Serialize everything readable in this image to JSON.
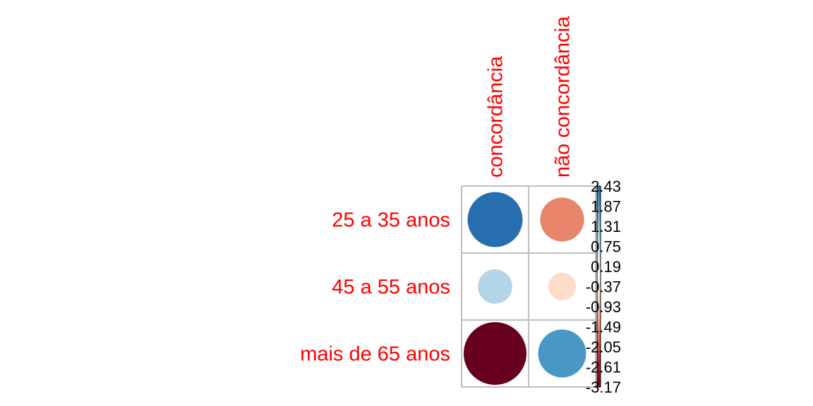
{
  "chart_data": {
    "type": "heatmap",
    "rows": [
      "25 a 35 anos",
      "45 a 55 anos",
      "mais de 65 anos"
    ],
    "columns": [
      "concordância",
      "não concordância"
    ],
    "values": [
      [
        2.43,
        -1.55
      ],
      [
        0.95,
        -0.62
      ],
      [
        -3.17,
        1.85
      ]
    ],
    "legend": {
      "position": "right",
      "ticks": [
        "2.43",
        "1.87",
        "1.31",
        "0.75",
        "0.19",
        "-0.37",
        "-0.93",
        "-1.49",
        "-2.05",
        "-2.61",
        "-3.17"
      ],
      "range": [
        -3.17,
        2.43
      ]
    },
    "colors": {
      "label": "#ff0000",
      "grid": "#bebebe",
      "scale": [
        "#67001F",
        "#B2182B",
        "#D6604D",
        "#F4A582",
        "#FDDBC7",
        "#FFFFFF",
        "#D1E5F0",
        "#92C5DE",
        "#4393C3",
        "#2166AC",
        "#053061"
      ]
    }
  }
}
